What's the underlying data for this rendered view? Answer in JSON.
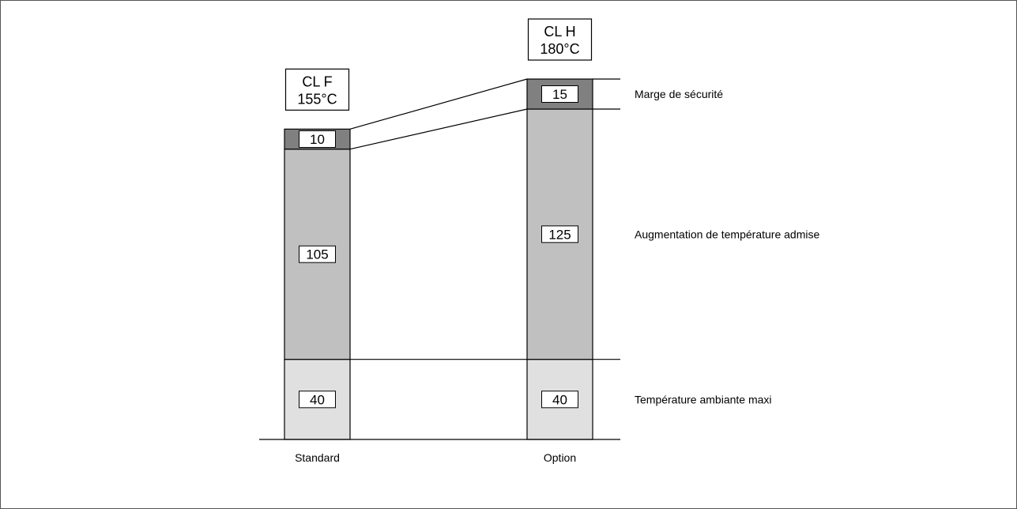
{
  "chart_data": {
    "type": "bar",
    "stacked": true,
    "categories": [
      "Standard",
      "Option"
    ],
    "series": [
      {
        "name": "Température ambiante maxi",
        "values": [
          40,
          40
        ],
        "color": "#e0e0e0"
      },
      {
        "name": "Augmentation de température admise",
        "values": [
          105,
          125
        ],
        "color": "#c0c0c0"
      },
      {
        "name": "Marge de sécurité",
        "values": [
          10,
          15
        ],
        "color": "#808080"
      }
    ],
    "class_labels": [
      {
        "line1": "CL F",
        "line2": "155°C"
      },
      {
        "line1": "CL H",
        "line2": "180°C"
      }
    ],
    "legend_placement": "right",
    "ylim": [
      0,
      180
    ],
    "grid": false,
    "title": "",
    "xlabel": "",
    "ylabel": ""
  }
}
